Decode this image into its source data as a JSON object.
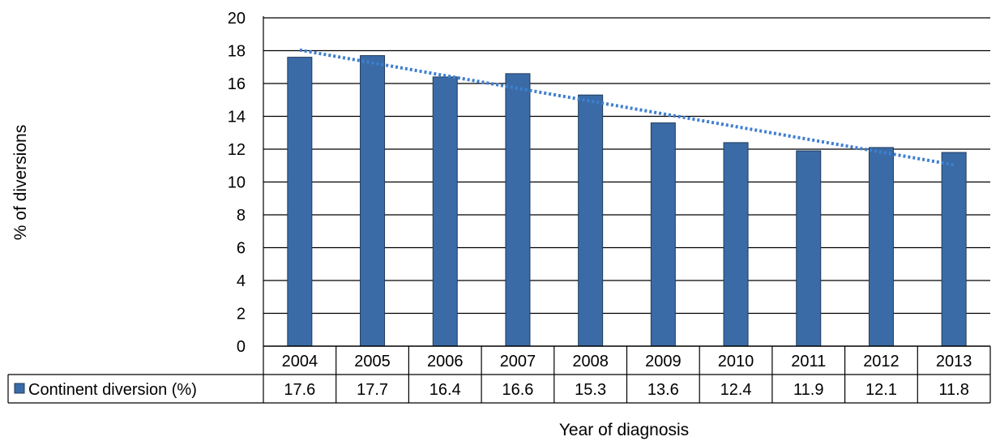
{
  "chart_data": {
    "type": "bar",
    "categories": [
      "2004",
      "2005",
      "2006",
      "2007",
      "2008",
      "2009",
      "2010",
      "2011",
      "2012",
      "2013"
    ],
    "series": [
      {
        "name": "Continent diversion (%)",
        "values": [
          17.6,
          17.7,
          16.4,
          16.6,
          15.3,
          13.6,
          12.4,
          11.9,
          12.1,
          11.8
        ],
        "color": "#3a6ba6"
      }
    ],
    "trendline": {
      "type": "linear",
      "style": "dotted",
      "color": "#3f7fcf"
    },
    "xlabel": "Year of diagnosis",
    "ylabel": "% of diversions",
    "ylim": [
      0,
      20
    ],
    "yticks": [
      0,
      2,
      4,
      6,
      8,
      10,
      12,
      14,
      16,
      18,
      20
    ],
    "grid": true,
    "data_table": true,
    "legend": "in data table"
  }
}
